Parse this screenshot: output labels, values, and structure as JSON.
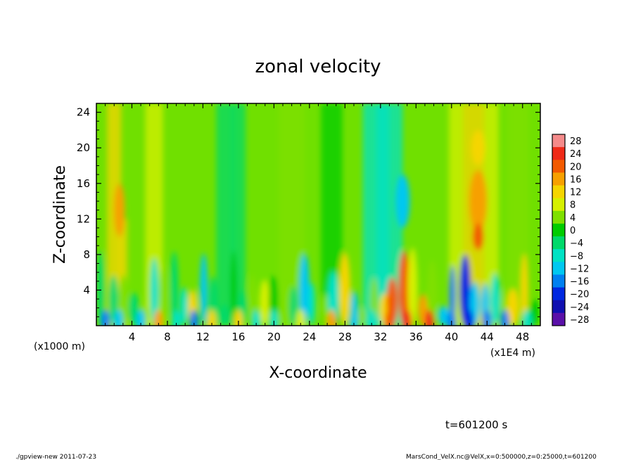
{
  "chart_data": {
    "type": "heatmap",
    "title": "zonal velocity",
    "xlabel": "X-coordinate",
    "ylabel": "Z-coordinate",
    "x_unit_label": "(x1E4 m)",
    "y_unit_label": "(x1000 m)",
    "xlim": [
      0,
      50
    ],
    "ylim": [
      0,
      25
    ],
    "x_ticks": [
      4,
      8,
      12,
      16,
      20,
      24,
      28,
      32,
      36,
      40,
      44,
      48
    ],
    "y_ticks": [
      4,
      8,
      12,
      16,
      20,
      24
    ],
    "colorbar_levels": [
      28,
      24,
      20,
      16,
      12,
      8,
      4,
      0,
      -4,
      -8,
      -12,
      -16,
      -20,
      -24,
      -28
    ],
    "colorbar_labels": [
      "28",
      "24",
      "20",
      "16",
      "12",
      "8",
      "4",
      "0",
      "−4",
      "−8",
      "−12",
      "−16",
      "−20",
      "−24",
      "−28"
    ],
    "colorbar_colors": [
      "#f48a8a",
      "#ef2a18",
      "#f25a00",
      "#f7a000",
      "#f5d500",
      "#d6f000",
      "#7fe000",
      "#00cc00",
      "#00d96a",
      "#00e2c4",
      "#00c8f0",
      "#0080f0",
      "#0028e0",
      "#1010b0",
      "#5a10a8"
    ],
    "time_label": "t=601200 s",
    "footer_left": "./gpview-new   2011-07-23",
    "footer_right": "MarsCond_VelX.nc@VelX,x=0:500000,z=0:25000,t=601200"
  }
}
